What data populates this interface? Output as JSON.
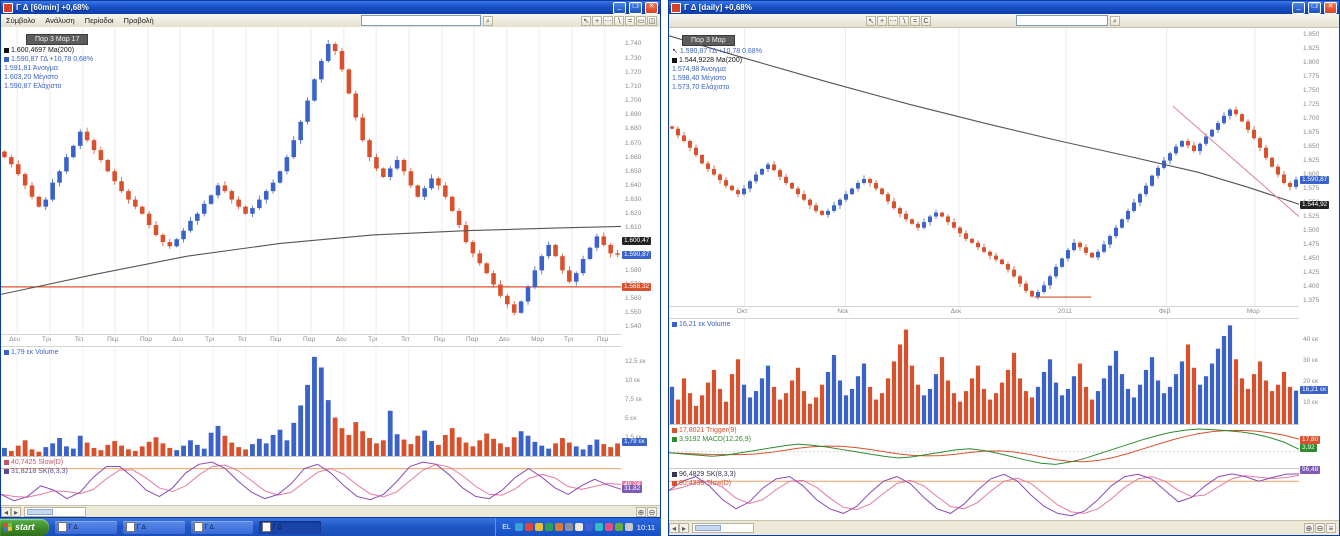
{
  "left_window": {
    "title": "Γ Δ [60min]   +0,68%",
    "menu_items": [
      "Σύμβολο",
      "Ανάλυση",
      "Περίοδοι",
      "Προβολή"
    ],
    "toolbar_icons": [
      "cursor",
      "crosshair",
      "dots",
      "trendline",
      "equals",
      "rectangle",
      "save"
    ],
    "search_icon": "magnifier",
    "tooltip": "Παρ 3 Μαρ 17",
    "legend": [
      {
        "text": "1.600,4697 Ma(200)",
        "color": "#111111",
        "bullet": "#111111"
      },
      {
        "text": "1.590,87 ΓΔ +10,78 0,68%",
        "color": "#3A62C8",
        "bullet": "#3A62C8"
      },
      {
        "text": "1.591,81 Άνοιγμα",
        "color": "#3A62C8",
        "bullet": null
      },
      {
        "text": "1.603,20 Μέγιστο",
        "color": "#3A62C8",
        "bullet": null
      },
      {
        "text": "1.590,87 Ελάχιστο",
        "color": "#3A62C8",
        "bullet": null
      }
    ],
    "volume_label": "1,79 εκ Volume",
    "stoch_labels": [
      {
        "text": "40,7425 Slow(D)",
        "color": "#C2556B"
      },
      {
        "text": "31,8218 SK(8,3,3)",
        "color": "#5B4B9B"
      }
    ]
  },
  "right_window": {
    "title": "Γ Δ [daily]   +0,68%",
    "toolbar_icons": [
      "cursor",
      "crosshair",
      "dots",
      "trendline",
      "equals",
      "text"
    ],
    "tooltip": "Παρ 3 Μαρ",
    "legend": [
      {
        "text": "1.590,87 ΓΔ +10,78 0,68%",
        "color": "#3A62C8",
        "bullet": null,
        "icon": "cursor-arrow"
      },
      {
        "text": "1.544,9228 Ma(200)",
        "color": "#111111",
        "bullet": "#111111"
      },
      {
        "text": "1.574,98 Άνοιγμα",
        "color": "#3A62C8",
        "bullet": null
      },
      {
        "text": "1.598,40 Μέγιστο",
        "color": "#3A62C8",
        "bullet": null
      },
      {
        "text": "1.573,70 Ελάχιστο",
        "color": "#3A62C8",
        "bullet": null
      }
    ],
    "volume_label": "16,21 εκ Volume",
    "macd_labels": [
      {
        "text": "17,8021 Trigger(9)",
        "color": "#D9512C"
      },
      {
        "text": "3,9192 MACD(12,26,9)",
        "color": "#2E8B2E"
      }
    ],
    "stoch_labels": [
      {
        "text": "96,4829 SK(8,3,3)",
        "color": "#333355"
      },
      {
        "text": "90,4338 Slow(D)",
        "color": "#D9512C"
      }
    ]
  },
  "taskbar": {
    "start_label": "start",
    "language": "EL",
    "clock": "10:11",
    "task_buttons": [
      {
        "label": "Γ Δ",
        "active": false
      },
      {
        "label": "Γ Δ",
        "active": false
      },
      {
        "label": "Γ Δ",
        "active": false
      },
      {
        "label": "Γ Δ",
        "active": true
      }
    ],
    "tray_icon_colors": [
      "#3aa0d8",
      "#d84a3a",
      "#e8c030",
      "#30a050",
      "#d87a30",
      "#8890a0",
      "#f0e8d8",
      "#4060d0",
      "#30c0c0",
      "#e05080",
      "#60b040",
      "#c8c8c8"
    ]
  },
  "chart_data": [
    {
      "type": "candlestick",
      "title": "ΓΔ 60min",
      "up_color": "#3A62C8",
      "down_color": "#D9512C",
      "ma_color": "#555555",
      "ylim": [
        1535,
        1752
      ],
      "y_tick_values": [
        1740,
        1730,
        1720,
        1710,
        1700,
        1690,
        1680,
        1670,
        1660,
        1650,
        1640,
        1630,
        1620,
        1610,
        1600,
        1590,
        1580,
        1570,
        1560,
        1550,
        1540
      ],
      "y_tick_labels": [
        "1.740",
        "1.730",
        "1.720",
        "1.710",
        "1.700",
        "1.690",
        "1.680",
        "1.670",
        "1.660",
        "1.650",
        "1.640",
        "1.630",
        "1.620",
        "1.610",
        "1.600",
        "1.590",
        "1.580",
        "1.570",
        "1.560",
        "1.550",
        "1.540"
      ],
      "x_ticks": [
        {
          "label": "Δευ",
          "pos": 0.026
        },
        {
          "label": "Τρι",
          "pos": 0.079
        },
        {
          "label": "Τετ",
          "pos": 0.132
        },
        {
          "label": "Πεμ",
          "pos": 0.184
        },
        {
          "label": "Παρ",
          "pos": 0.237
        },
        {
          "label": "Δευ",
          "pos": 0.289
        },
        {
          "label": "Τρι",
          "pos": 0.342
        },
        {
          "label": "Τετ",
          "pos": 0.395
        },
        {
          "label": "Πεμ",
          "pos": 0.447
        },
        {
          "label": "Παρ",
          "pos": 0.5
        },
        {
          "label": "Δευ",
          "pos": 0.553
        },
        {
          "label": "Τρι",
          "pos": 0.605
        },
        {
          "label": "Τετ",
          "pos": 0.658
        },
        {
          "label": "Πεμ",
          "pos": 0.711
        },
        {
          "label": "Παρ",
          "pos": 0.763
        },
        {
          "label": "Δευ",
          "pos": 0.816
        },
        {
          "label": "Μαρ",
          "pos": 0.868
        },
        {
          "label": "Τρι",
          "pos": 0.921
        },
        {
          "label": "Πεμ",
          "pos": 0.974
        }
      ],
      "closes": [
        1660,
        1655,
        1648,
        1640,
        1632,
        1625,
        1630,
        1642,
        1650,
        1660,
        1668,
        1678,
        1672,
        1665,
        1658,
        1650,
        1643,
        1636,
        1630,
        1625,
        1620,
        1612,
        1605,
        1600,
        1597,
        1602,
        1608,
        1615,
        1620,
        1627,
        1633,
        1640,
        1636,
        1630,
        1625,
        1620,
        1624,
        1630,
        1636,
        1642,
        1650,
        1660,
        1672,
        1685,
        1700,
        1715,
        1728,
        1740,
        1735,
        1722,
        1705,
        1688,
        1672,
        1660,
        1652,
        1646,
        1652,
        1658,
        1650,
        1640,
        1632,
        1638,
        1645,
        1640,
        1632,
        1622,
        1612,
        1600,
        1592,
        1585,
        1578,
        1570,
        1562,
        1556,
        1550,
        1558,
        1568,
        1580,
        1590,
        1598,
        1590,
        1580,
        1572,
        1578,
        1588,
        1596,
        1604,
        1598,
        1592,
        1591
      ],
      "ma200": [
        [
          0,
          1563
        ],
        [
          0.15,
          1577
        ],
        [
          0.3,
          1590
        ],
        [
          0.45,
          1599
        ],
        [
          0.6,
          1605
        ],
        [
          0.75,
          1608
        ],
        [
          0.9,
          1610
        ],
        [
          1,
          1611
        ]
      ],
      "h_lines": [
        {
          "value": 1568.3,
          "color": "#E0502A",
          "from": 0,
          "to": 1
        }
      ],
      "badges": [
        {
          "label": "1.600,47",
          "value": 1600.5,
          "color": "#222222"
        },
        {
          "label": "1.590,87",
          "value": 1590.9,
          "color": "#3A62C8"
        },
        {
          "label": "1.568,32",
          "value": 1568.3,
          "color": "#D9512C"
        }
      ],
      "volume": {
        "values": [
          1.2,
          0.8,
          1.5,
          2.2,
          1.0,
          0.7,
          1.3,
          1.8,
          2.5,
          1.4,
          1.1,
          2.8,
          1.9,
          1.2,
          0.9,
          1.6,
          2.1,
          1.5,
          1.0,
          0.8,
          1.4,
          2.0,
          2.6,
          1.8,
          1.2,
          0.9,
          1.5,
          2.2,
          1.6,
          1.1,
          3.2,
          4.1,
          2.8,
          1.9,
          1.3,
          1.0,
          1.7,
          2.4,
          1.8,
          2.9,
          3.6,
          2.2,
          4.5,
          6.8,
          9.5,
          13.2,
          11.8,
          7.5,
          5.2,
          3.8,
          2.9,
          4.6,
          3.4,
          2.5,
          1.8,
          2.2,
          6.1,
          3.0,
          2.3,
          1.7,
          2.8,
          3.5,
          2.1,
          1.6,
          2.9,
          3.8,
          2.6,
          1.9,
          1.4,
          2.2,
          3.1,
          2.4,
          1.8,
          1.3,
          2.6,
          3.4,
          2.8,
          2.0,
          1.5,
          1.1,
          1.8,
          2.5,
          1.9,
          1.4,
          1.0,
          1.6,
          2.3,
          1.7,
          1.3,
          1.79
        ],
        "ylim": [
          0,
          14.5
        ],
        "tick_values": [
          12.5,
          10,
          7.5,
          5,
          2.5
        ],
        "tick_labels": [
          "12,5 εκ",
          "10 εκ",
          "7,5 εκ",
          "5 εκ",
          "2,5 εκ"
        ],
        "badge": {
          "label": "1,79 εκ",
          "value": 1.79,
          "color": "#3A62C8"
        }
      },
      "stochastic": {
        "k": [
          20,
          5,
          15,
          40,
          30,
          10,
          25,
          60,
          85,
          85,
          60,
          30,
          15,
          35,
          70,
          90,
          95,
          80,
          50,
          25,
          10,
          20,
          45,
          80,
          90,
          70,
          40,
          15,
          8,
          20,
          50,
          85,
          95,
          90,
          65,
          35,
          15,
          10,
          30,
          60,
          80,
          60,
          35,
          20,
          40,
          55,
          42,
          32
        ],
        "overbought": 80,
        "k_color": "#8B4BB8",
        "d_color": "#E87BA0",
        "ob_color": "#E8A268",
        "badges": [
          {
            "label": "40,74",
            "value": 40.74,
            "color": "#E87BA0"
          },
          {
            "label": "31,82",
            "value": 31.82,
            "color": "#7B5BB5"
          }
        ]
      }
    },
    {
      "type": "candlestick",
      "title": "ΓΔ daily",
      "up_color": "#3A62C8",
      "down_color": "#D9512C",
      "ma_color": "#555555",
      "ylim": [
        1365,
        1862
      ],
      "y_tick_values": [
        1850,
        1825,
        1800,
        1775,
        1750,
        1725,
        1700,
        1675,
        1650,
        1625,
        1600,
        1575,
        1550,
        1525,
        1500,
        1475,
        1450,
        1425,
        1400,
        1375
      ],
      "y_tick_labels": [
        "1.850",
        "1.825",
        "1.800",
        "1.775",
        "1.750",
        "1.725",
        "1.700",
        "1.675",
        "1.650",
        "1.625",
        "1.600",
        "1.575",
        "1.550",
        "1.525",
        "1.500",
        "1.475",
        "1.450",
        "1.425",
        "1.400",
        "1.375"
      ],
      "x_ticks": [
        {
          "label": "Οκτ",
          "pos": 0.12
        },
        {
          "label": "Νοε",
          "pos": 0.28
        },
        {
          "label": "Δεκ",
          "pos": 0.46
        },
        {
          "label": "2011",
          "pos": 0.63
        },
        {
          "label": "Φεβ",
          "pos": 0.79
        },
        {
          "label": "Μαρ",
          "pos": 0.93
        }
      ],
      "closes": [
        1682,
        1670,
        1660,
        1648,
        1635,
        1620,
        1610,
        1600,
        1590,
        1580,
        1572,
        1565,
        1575,
        1588,
        1600,
        1610,
        1618,
        1608,
        1596,
        1585,
        1575,
        1565,
        1555,
        1545,
        1535,
        1528,
        1535,
        1545,
        1555,
        1565,
        1575,
        1585,
        1592,
        1585,
        1575,
        1565,
        1552,
        1540,
        1530,
        1520,
        1512,
        1505,
        1515,
        1525,
        1532,
        1525,
        1515,
        1505,
        1495,
        1485,
        1478,
        1470,
        1462,
        1455,
        1448,
        1440,
        1430,
        1418,
        1405,
        1392,
        1382,
        1390,
        1402,
        1418,
        1435,
        1450,
        1465,
        1478,
        1470,
        1460,
        1452,
        1462,
        1475,
        1490,
        1505,
        1520,
        1535,
        1550,
        1565,
        1580,
        1598,
        1612,
        1625,
        1638,
        1650,
        1660,
        1652,
        1642,
        1655,
        1668,
        1680,
        1692,
        1705,
        1716,
        1708,
        1695,
        1680,
        1665,
        1648,
        1630,
        1614,
        1600,
        1585,
        1578,
        1591
      ],
      "ma200": [
        [
          0,
          1848
        ],
        [
          0.12,
          1808
        ],
        [
          0.25,
          1766
        ],
        [
          0.38,
          1726
        ],
        [
          0.5,
          1692
        ],
        [
          0.62,
          1660
        ],
        [
          0.74,
          1630
        ],
        [
          0.84,
          1604
        ],
        [
          0.92,
          1577
        ],
        [
          1,
          1547
        ]
      ],
      "h_lines": [
        {
          "value": 1381,
          "color": "#D9512C",
          "from": 0.58,
          "to": 0.67
        }
      ],
      "trend_lines": [
        {
          "pts": [
            [
              0.8,
              1722
            ],
            [
              1.005,
              1520
            ]
          ],
          "color": "#E080A0"
        }
      ],
      "badges": [
        {
          "label": "1.590,87",
          "value": 1590.9,
          "color": "#3A62C8"
        },
        {
          "label": "1.544,92",
          "value": 1544.9,
          "color": "#222222"
        }
      ],
      "volume": {
        "values": [
          18,
          12,
          22,
          15,
          9,
          14,
          20,
          26,
          17,
          11,
          24,
          31,
          19,
          13,
          16,
          22,
          28,
          18,
          12,
          15,
          21,
          27,
          16,
          10,
          13,
          19,
          25,
          33,
          21,
          14,
          17,
          23,
          29,
          18,
          12,
          15,
          22,
          30,
          38,
          45,
          28,
          19,
          14,
          17,
          24,
          32,
          21,
          15,
          11,
          16,
          22,
          28,
          17,
          12,
          15,
          20,
          26,
          34,
          22,
          16,
          13,
          18,
          25,
          31,
          20,
          14,
          17,
          23,
          29,
          18,
          12,
          16,
          22,
          28,
          35,
          24,
          17,
          13,
          19,
          26,
          32,
          21,
          15,
          18,
          24,
          30,
          38,
          27,
          19,
          23,
          29,
          36,
          42,
          47,
          31,
          22,
          17,
          24,
          30,
          21,
          16,
          19,
          25,
          18,
          16.21
        ],
        "ylim": [
          0,
          50
        ],
        "tick_values": [
          40,
          30,
          20,
          10
        ],
        "tick_labels": [
          "40 εκ",
          "30 εκ",
          "20 εκ",
          "10 εκ"
        ],
        "badge": {
          "label": "16,21 εκ",
          "value": 16.21,
          "color": "#3A62C8"
        }
      },
      "macd": {
        "values": [
          -2,
          -4,
          -6,
          -8,
          -6,
          -2,
          2,
          6,
          10,
          13,
          11,
          8,
          4,
          0,
          -4,
          -8,
          -11,
          -9,
          -5,
          -1,
          3,
          5,
          2,
          -3,
          -9,
          -15,
          -20,
          -22,
          -18,
          -12,
          -4,
          4,
          12,
          20,
          27,
          33,
          37,
          39,
          38,
          36,
          34,
          30,
          24,
          16,
          4
        ],
        "ylim": [
          -30,
          46
        ],
        "macd_color": "#2E8B2E",
        "trigger_color": "#D9512C",
        "badges": [
          {
            "label": "17,80",
            "value": 17.8,
            "color": "#D9512C"
          },
          {
            "label": "3,92",
            "value": 3.92,
            "color": "#2E8B2E"
          }
        ]
      },
      "stochastic": {
        "k": [
          60,
          80,
          90,
          70,
          40,
          20,
          35,
          65,
          85,
          90,
          70,
          40,
          20,
          10,
          25,
          55,
          80,
          90,
          75,
          45,
          20,
          10,
          30,
          60,
          85,
          95,
          80,
          50,
          25,
          10,
          5,
          15,
          40,
          70,
          90,
          95,
          85,
          60,
          35,
          45,
          70,
          90,
          96,
          90,
          80,
          88,
          95,
          96
        ],
        "overbought": 80,
        "k_color": "#8B4BB8",
        "d_color": "#E87BA0",
        "ob_color": "#E8A268",
        "badges": [
          {
            "label": "96,48",
            "value": 96.48,
            "color": "#7B5BB5"
          }
        ]
      }
    }
  ]
}
